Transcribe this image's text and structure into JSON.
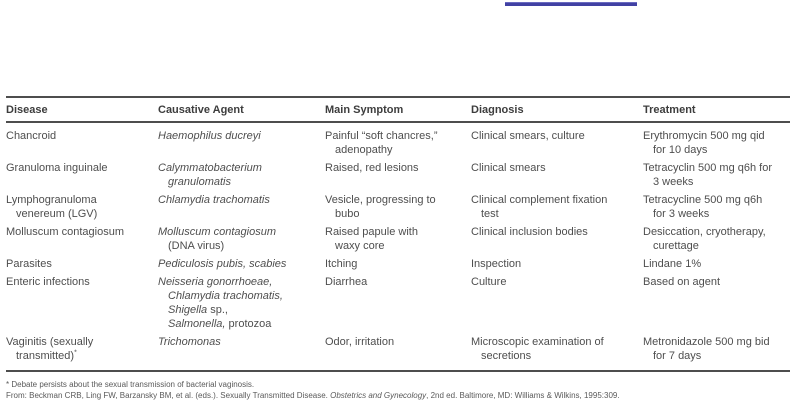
{
  "page": {
    "background": "#ffffff",
    "accent_underline_color": "#4141a3",
    "table_rule_color": "#4d4d4d",
    "text_color": "#4e4e4e"
  },
  "table": {
    "columns": [
      "Disease",
      "Causative Agent",
      "Main Symptom",
      "Diagnosis",
      "Treatment"
    ],
    "rows": [
      [
        [
          [
            {
              "t": "Chancroid"
            }
          ]
        ],
        [
          [
            {
              "t": "Haemophilus ducreyi",
              "i": true
            }
          ]
        ],
        [
          [
            {
              "t": "Painful “soft chancres,”"
            }
          ],
          [
            {
              "t": "adenopathy"
            }
          ]
        ],
        [
          [
            {
              "t": "Clinical smears, culture"
            }
          ]
        ],
        [
          [
            {
              "t": "Erythromycin 500 mg qid"
            }
          ],
          [
            {
              "t": "for 10 days"
            }
          ]
        ]
      ],
      [
        [
          [
            {
              "t": "Granuloma inguinale"
            }
          ]
        ],
        [
          [
            {
              "t": "Calymmatobacterium",
              "i": true
            }
          ],
          [
            {
              "t": "granulomatis",
              "i": true
            }
          ]
        ],
        [
          [
            {
              "t": "Raised, red lesions"
            }
          ]
        ],
        [
          [
            {
              "t": "Clinical smears"
            }
          ]
        ],
        [
          [
            {
              "t": "Tetracyclin 500 mg q6h for"
            }
          ],
          [
            {
              "t": "3 weeks"
            }
          ]
        ]
      ],
      [
        [
          [
            {
              "t": "Lymphogranuloma"
            }
          ],
          [
            {
              "t": "venereum (LGV)"
            }
          ]
        ],
        [
          [
            {
              "t": "Chlamydia trachomatis",
              "i": true
            }
          ]
        ],
        [
          [
            {
              "t": "Vesicle, progressing to"
            }
          ],
          [
            {
              "t": "bubo"
            }
          ]
        ],
        [
          [
            {
              "t": "Clinical complement fixation"
            }
          ],
          [
            {
              "t": "test"
            }
          ]
        ],
        [
          [
            {
              "t": "Tetracycline 500 mg q6h"
            }
          ],
          [
            {
              "t": "for 3 weeks"
            }
          ]
        ]
      ],
      [
        [
          [
            {
              "t": "Molluscum contagiosum"
            }
          ]
        ],
        [
          [
            {
              "t": "Molluscum contagiosum",
              "i": true
            }
          ],
          [
            {
              "t": "(DNA virus)"
            }
          ]
        ],
        [
          [
            {
              "t": "Raised papule with"
            }
          ],
          [
            {
              "t": "waxy core"
            }
          ]
        ],
        [
          [
            {
              "t": "Clinical inclusion bodies"
            }
          ]
        ],
        [
          [
            {
              "t": "Desiccation, cryotherapy,"
            }
          ],
          [
            {
              "t": "curettage"
            }
          ]
        ]
      ],
      [
        [
          [
            {
              "t": "Parasites"
            }
          ]
        ],
        [
          [
            {
              "t": "Pediculosis pubis, scabies",
              "i": true
            }
          ]
        ],
        [
          [
            {
              "t": "Itching"
            }
          ]
        ],
        [
          [
            {
              "t": "Inspection"
            }
          ]
        ],
        [
          [
            {
              "t": "Lindane 1%"
            }
          ]
        ]
      ],
      [
        [
          [
            {
              "t": "Enteric infections"
            }
          ]
        ],
        [
          [
            {
              "t": "Neisseria gonorrhoeae,",
              "i": true
            }
          ],
          [
            {
              "t": "Chlamydia trachomatis,",
              "i": true
            }
          ],
          [
            {
              "t": "Shigella",
              "i": true
            },
            {
              "t": " sp.,"
            }
          ],
          [
            {
              "t": "Salmonella,",
              "i": true
            },
            {
              "t": " protozoa"
            }
          ]
        ],
        [
          [
            {
              "t": "Diarrhea"
            }
          ]
        ],
        [
          [
            {
              "t": "Culture"
            }
          ]
        ],
        [
          [
            {
              "t": "Based on agent"
            }
          ]
        ]
      ],
      [
        [
          [
            {
              "t": "Vaginitis (sexually"
            }
          ],
          [
            {
              "t": "transmitted)"
            },
            {
              "t": "*",
              "s": true
            }
          ]
        ],
        [
          [
            {
              "t": "Trichomonas",
              "i": true
            }
          ]
        ],
        [
          [
            {
              "t": "Odor, irritation"
            }
          ]
        ],
        [
          [
            {
              "t": "Microscopic examination of"
            }
          ],
          [
            {
              "t": "secretions"
            }
          ]
        ],
        [
          [
            {
              "t": "Metronidazole 500 mg bid"
            }
          ],
          [
            {
              "t": "for 7 days"
            }
          ]
        ]
      ]
    ]
  },
  "footnotes": [
    [
      {
        "t": "* Debate persists about the sexual transmission of bacterial vaginosis."
      }
    ],
    [
      {
        "t": "From: Beckman CRB, Ling FW, Barzansky BM, et al. (eds.). Sexually Transmitted Disease. "
      },
      {
        "t": "Obstetrics and Gynecology",
        "i": true
      },
      {
        "t": ", 2nd ed. Baltimore, MD: Williams & Wilkins, 1995:309."
      }
    ]
  ]
}
